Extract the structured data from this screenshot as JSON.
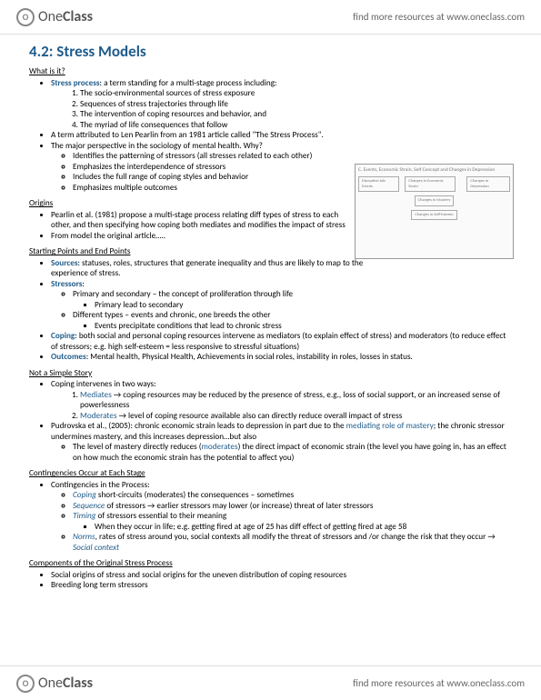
{
  "header": {
    "logo_one": "One",
    "logo_class": "Class",
    "tagline": "find more resources at www.oneclass.com"
  },
  "title": "4.2: Stress Models",
  "s1": {
    "heading": "What is it?",
    "b1_term": "Stress process",
    "b1_rest": ": a term standing for a multi-stage process including:",
    "o1": "The socio-environmental sources of stress exposure",
    "o2": "Sequences of stress trajectories through life",
    "o3": "The intervention of coping resources and behavior, and",
    "o4": "The myriad of life consequences that follow",
    "b2": "A term attributed to Len Pearlin from an 1981 article called \"The Stress Process\".",
    "b3": "The major perspective in the sociology of mental health. Why?",
    "b3a": "Identifies the patterning of stressors (all stresses related to each other)",
    "b3b": "Emphasizes the interdependence of stressors",
    "b3c": "Includes the full range of coping styles and behavior",
    "b3d": "Emphasizes multiple outcomes"
  },
  "s2": {
    "heading": "Origins",
    "b1": "Pearlin et al. (1981) propose a multi-stage process relating diff types of stress to each other, and then specifying how coping both mediates and modifies the impact of stress",
    "b2": "From model the original article….."
  },
  "s3": {
    "heading": "Starting Points and End Points",
    "sources_t": "Sources",
    "sources": ": statuses, roles, structures that generate inequality and thus are likely to map to the experience of stress.",
    "stressors_t": "Stressors",
    "stressors": ":",
    "st1": "Primary and secondary – the concept of proliferation through life",
    "st1a": "Primary lead to secondary",
    "st2": "Different types – events and chronic, one breeds the other",
    "st2a": "Events precipitate conditions that lead to chronic stress",
    "coping_t": "Coping",
    "coping": ": both social and personal coping resources intervene as mediators (to explain effect of stress) and moderators (to reduce effect of stressors; e.g. high self-esteem = less responsive to stressful situations)",
    "outcomes_t": "Outcomes",
    "outcomes": ": Mental health, Physical Health, Achievements in social roles, instability in roles, losses in status."
  },
  "s4": {
    "heading": "Not a Simple Story",
    "b1": "Coping intervenes in two ways:",
    "med_t": "Mediates",
    "med": " → coping resources may be reduced by the presence of stress, e.g., loss of social support, or an increased sense of powerlessness",
    "mod_t": "Moderates",
    "mod": " → level of coping resource available also can directly reduce overall impact of stress",
    "b2a": "Pudrovska et al., (2005): chronic economic strain leads to depression in part due to the ",
    "b2b": "mediating role of mastery",
    "b2c": "; the chronic stressor undermines mastery, and this increases depression…but also",
    "b2sub_a": "The level of mastery directly reduces (",
    "b2sub_b": "moderates",
    "b2sub_c": ") the direct impact of economic strain (the level you have going in, has an effect on how much the economic strain has the potential to affect you)"
  },
  "s5": {
    "heading": "Contingencies Occur at Each Stage",
    "b1": "Contingencies in the Process:",
    "c1t": "Coping",
    "c1": " short-circuits (moderates) the consequences – sometimes",
    "c2t": "Sequence",
    "c2": " of stressors → earlier stressors may lower (or increase) threat of later stressors",
    "c3t": "Timing",
    "c3": " of stressors essential to their meaning",
    "c3a": "When they occur in life; e.g. getting fired at age of 25 has diff effect of getting fired at age 58",
    "c4t": "Norms",
    "c4a": ", rates of stress around you, social contexts all modify the threat of stressors and /or change the risk that they occur → ",
    "c4b": "Social context"
  },
  "s6": {
    "heading": "Components of the Original Stress Process",
    "b1": "Social origins of stress and social origins for the uneven distribution of coping resources",
    "b2": "Breeding long term stressors"
  },
  "diagram": {
    "title": "C. Events, Economic Strain, Self Concept and Changes in Depression",
    "box1": "Disruptive Job Events",
    "box2": "Changes in Economic Strain",
    "box3": "Changes in Mastery",
    "box4": "Changes in Self-Esteem",
    "box5": "Changes in Depression"
  },
  "colors": {
    "heading": "#1f5c8b",
    "term": "#1f5c8b",
    "text": "#000000",
    "background": "#ffffff"
  }
}
